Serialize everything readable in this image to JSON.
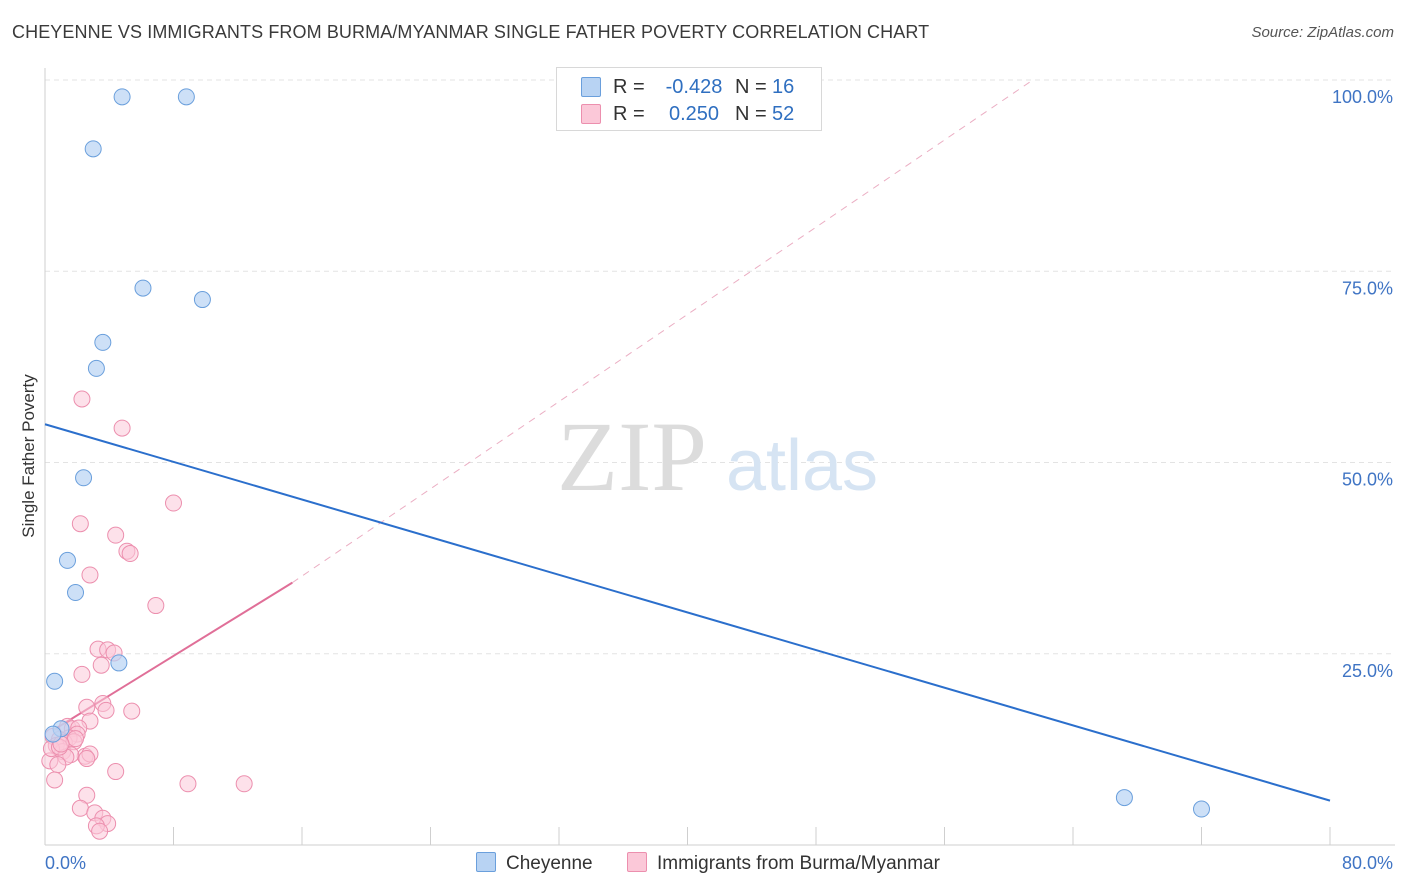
{
  "title": "CHEYENNE VS IMMIGRANTS FROM BURMA/MYANMAR SINGLE FATHER POVERTY CORRELATION CHART",
  "source": "Source: ZipAtlas.com",
  "watermark": {
    "zip": "ZIP",
    "atlas": "atlas"
  },
  "legend": {
    "rows": [
      {
        "r_label": "R =",
        "r_value": "-0.428",
        "n_label": "N =",
        "n_value": "16"
      },
      {
        "r_label": "R =",
        "r_value": "0.250",
        "n_label": "N =",
        "n_value": "52"
      }
    ]
  },
  "colors": {
    "cheyenne_fill": "#b8d3f3",
    "cheyenne_stroke": "#6a9fdc",
    "cheyenne_line": "#2b6fcc",
    "burma_fill": "#fbc8d8",
    "burma_stroke": "#ec8fae",
    "burma_line": "#e06f98",
    "axis_text": "#3f74c4",
    "grid": "#e3e3e3"
  },
  "chart_data": {
    "type": "scatter",
    "xlabel": "",
    "ylabel": "Single Father Poverty",
    "xlim": [
      0,
      80
    ],
    "ylim": [
      0,
      100
    ],
    "x_tick_labels": [
      "0.0%",
      "80.0%"
    ],
    "y_tick_labels": [
      "25.0%",
      "50.0%",
      "75.0%",
      "100.0%"
    ],
    "y_ticks": [
      25,
      50,
      75,
      100
    ],
    "grid": true,
    "legend_position": "top-center",
    "series": [
      {
        "name": "Cheyenne",
        "r": -0.428,
        "n": 16,
        "points": [
          [
            4.8,
            97.8
          ],
          [
            8.8,
            97.8
          ],
          [
            3.0,
            91.0
          ],
          [
            6.1,
            72.8
          ],
          [
            9.8,
            71.3
          ],
          [
            3.6,
            65.7
          ],
          [
            3.2,
            62.3
          ],
          [
            2.4,
            48.0
          ],
          [
            1.4,
            37.2
          ],
          [
            1.9,
            33.0
          ],
          [
            0.6,
            21.4
          ],
          [
            4.6,
            23.8
          ],
          [
            1.0,
            15.2
          ],
          [
            0.5,
            14.5
          ],
          [
            67.2,
            6.2
          ],
          [
            72.0,
            4.7
          ]
        ],
        "trend": {
          "x": [
            0,
            80
          ],
          "y": [
            55.0,
            5.8
          ],
          "style": "solid"
        }
      },
      {
        "name": "Immigrants from Burma/Myanmar",
        "r": 0.25,
        "n": 52,
        "points": [
          [
            2.3,
            58.3
          ],
          [
            4.8,
            54.5
          ],
          [
            8.0,
            44.7
          ],
          [
            2.2,
            42.0
          ],
          [
            4.4,
            40.5
          ],
          [
            5.1,
            38.4
          ],
          [
            5.3,
            38.1
          ],
          [
            2.8,
            35.3
          ],
          [
            6.9,
            31.3
          ],
          [
            3.3,
            25.6
          ],
          [
            3.9,
            25.5
          ],
          [
            4.3,
            25.1
          ],
          [
            3.5,
            23.5
          ],
          [
            2.3,
            22.3
          ],
          [
            5.4,
            17.5
          ],
          [
            2.6,
            18.0
          ],
          [
            3.6,
            18.5
          ],
          [
            3.8,
            17.6
          ],
          [
            2.8,
            16.2
          ],
          [
            1.4,
            15.5
          ],
          [
            1.7,
            15.2
          ],
          [
            2.1,
            15.3
          ],
          [
            2.0,
            14.5
          ],
          [
            1.5,
            14.0
          ],
          [
            0.5,
            14.2
          ],
          [
            0.9,
            13.8
          ],
          [
            1.2,
            13.4
          ],
          [
            1.8,
            13.5
          ],
          [
            0.7,
            13.0
          ],
          [
            1.1,
            12.2
          ],
          [
            2.5,
            11.6
          ],
          [
            1.6,
            11.8
          ],
          [
            1.3,
            11.5
          ],
          [
            0.3,
            11.0
          ],
          [
            0.8,
            10.5
          ],
          [
            2.8,
            11.9
          ],
          [
            0.4,
            12.6
          ],
          [
            4.4,
            9.6
          ],
          [
            2.6,
            11.3
          ],
          [
            0.6,
            8.5
          ],
          [
            8.9,
            8.0
          ],
          [
            12.4,
            8.0
          ],
          [
            2.6,
            6.5
          ],
          [
            2.2,
            4.8
          ],
          [
            3.1,
            4.2
          ],
          [
            3.6,
            3.5
          ],
          [
            3.9,
            2.8
          ],
          [
            3.2,
            2.5
          ],
          [
            3.4,
            1.8
          ],
          [
            0.9,
            12.8
          ],
          [
            1.9,
            13.9
          ],
          [
            1.0,
            13.2
          ]
        ],
        "trend": {
          "x": [
            0.5,
            15.4
          ],
          "y": [
            15.0,
            34.3
          ],
          "style": "solid"
        },
        "trend_extension": {
          "x": [
            15.4,
            61.5
          ],
          "y": [
            34.3,
            100.0
          ],
          "style": "dashed"
        }
      }
    ]
  }
}
